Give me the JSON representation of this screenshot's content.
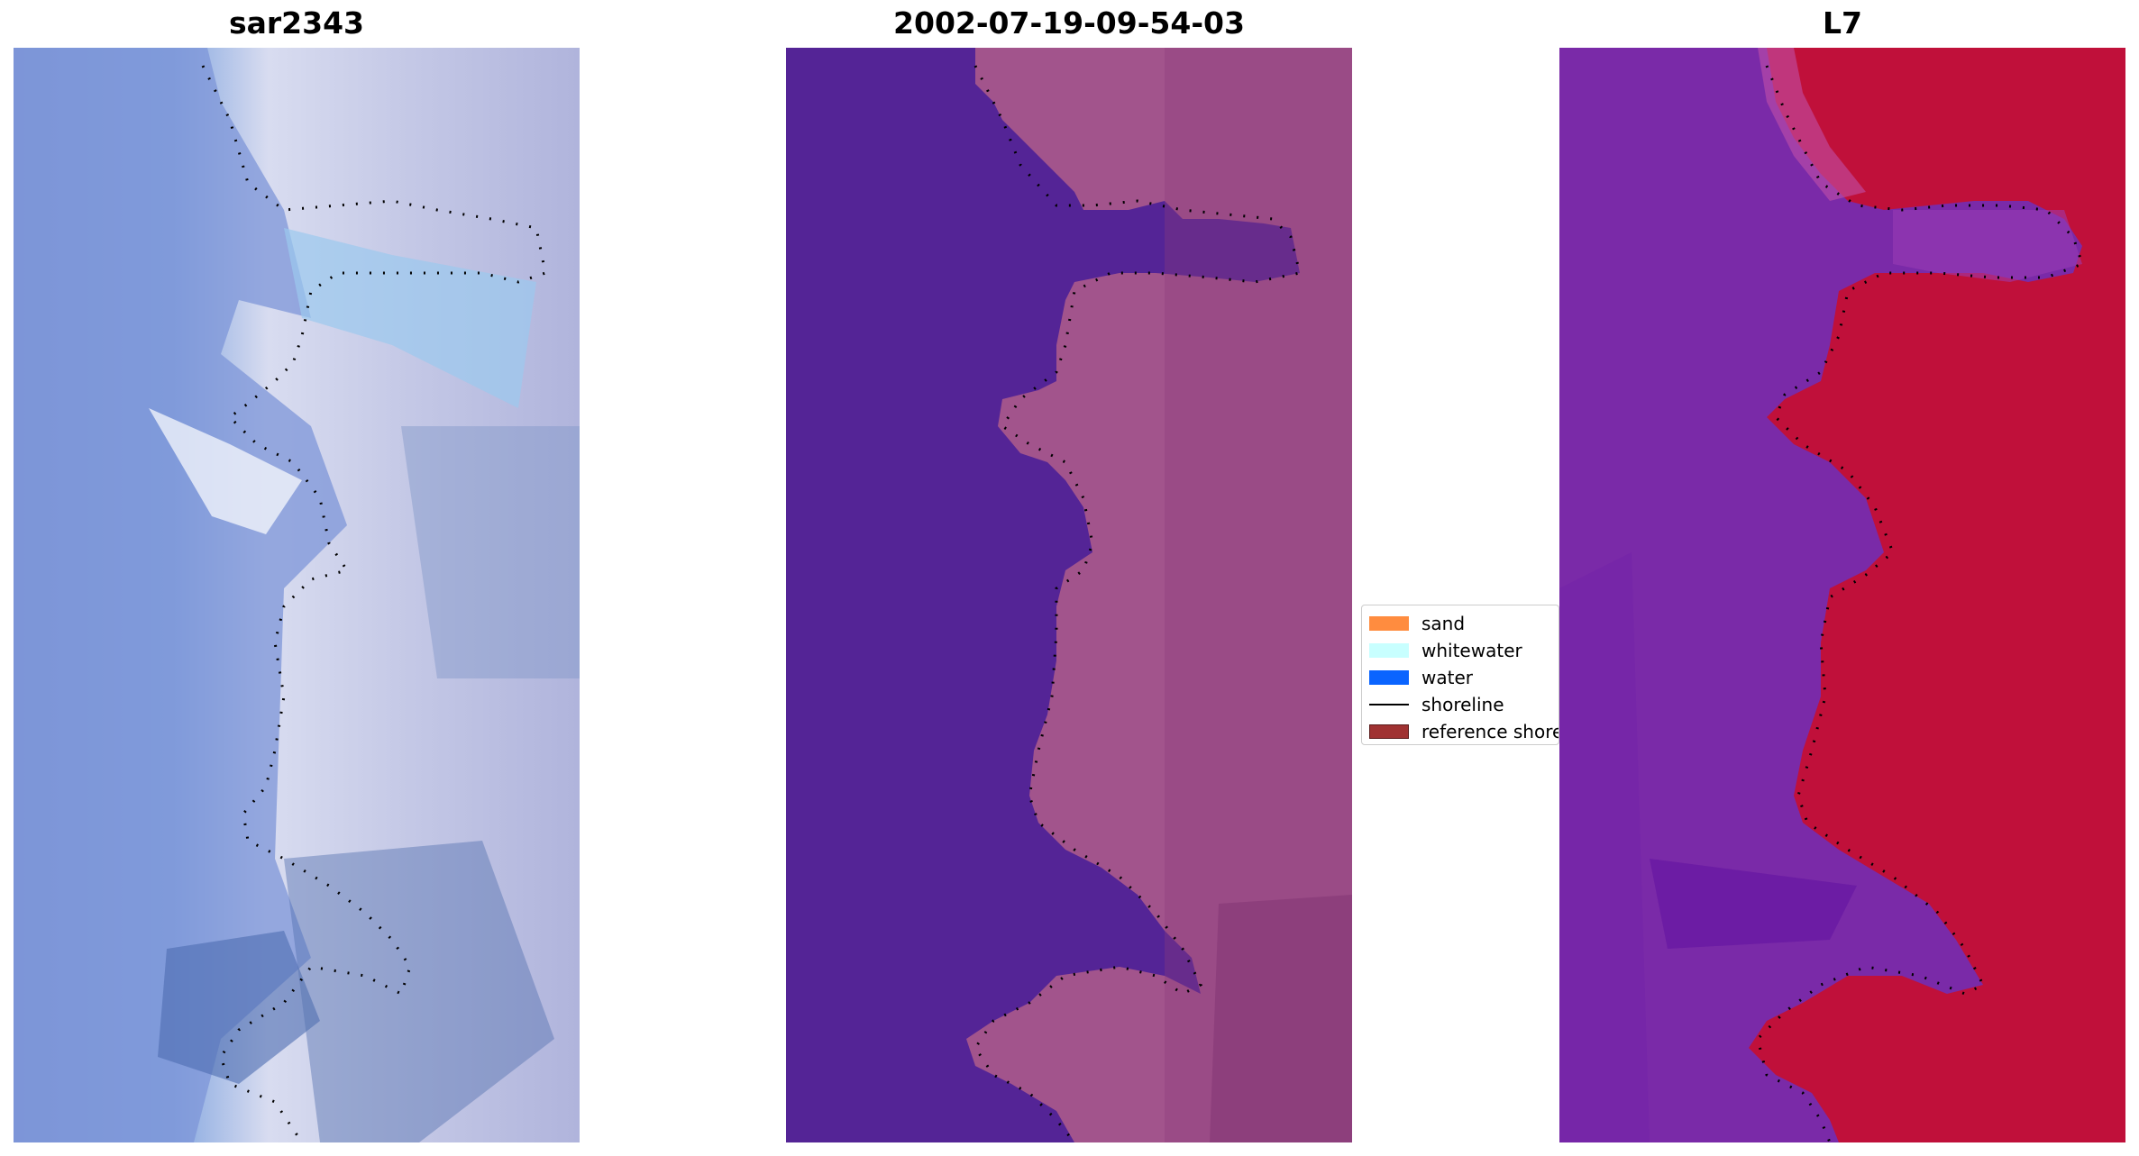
{
  "panels": [
    {
      "title": "sar2343"
    },
    {
      "title": "2002-07-19-09-54-03"
    },
    {
      "title": "L7"
    }
  ],
  "legend": {
    "items": [
      {
        "label": "sand",
        "kind": "patch",
        "color": "#ff8c3f"
      },
      {
        "label": "whitewater",
        "kind": "patch",
        "color": "#c8ffff"
      },
      {
        "label": "water",
        "kind": "patch",
        "color": "#0a64ff"
      },
      {
        "label": "shoreline",
        "kind": "line",
        "color": "#000000"
      },
      {
        "label": "reference shoreline",
        "kind": "patch",
        "color": "#a03232"
      }
    ]
  },
  "colors": {
    "water_class": "#542496",
    "sand_class": "#b05a90",
    "ndwi_high": "#c0103a",
    "ndwi_low": "#7a2aa8"
  }
}
